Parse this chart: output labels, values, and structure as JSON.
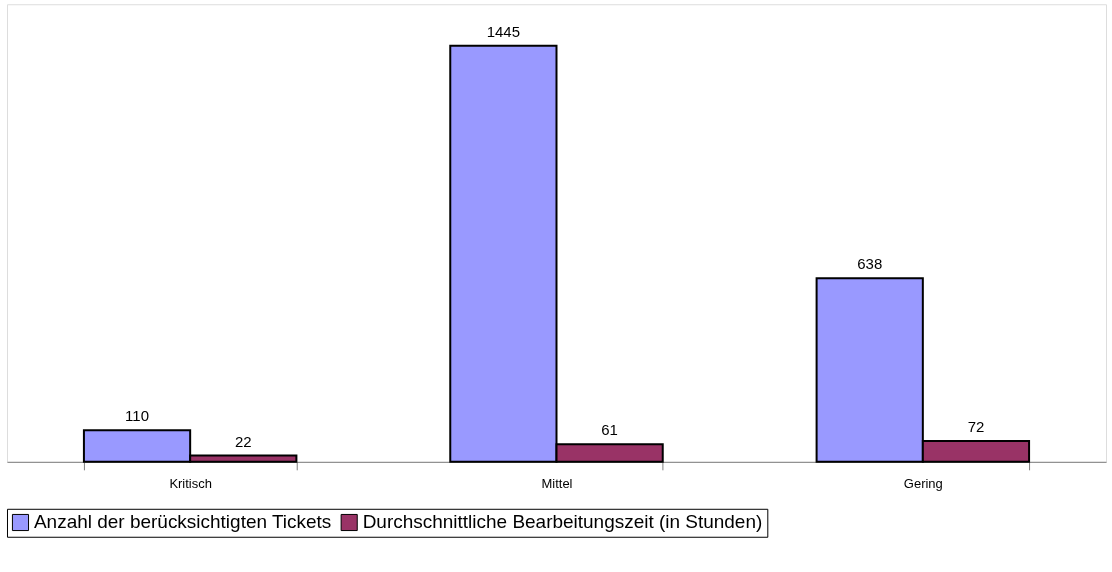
{
  "chart_data": {
    "type": "bar",
    "categories": [
      "Kritisch",
      "Mittel",
      "Gering"
    ],
    "series": [
      {
        "name": "Anzahl der berücksichtigten Tickets",
        "color": "#9999ff",
        "values": [
          110,
          1445,
          638
        ]
      },
      {
        "name": "Durchschnittliche Bearbeitungszeit (in Stunden)",
        "color": "#993366",
        "values": [
          22,
          61,
          72
        ]
      }
    ],
    "data_labels": true,
    "legend": "bottom",
    "grid": false
  }
}
